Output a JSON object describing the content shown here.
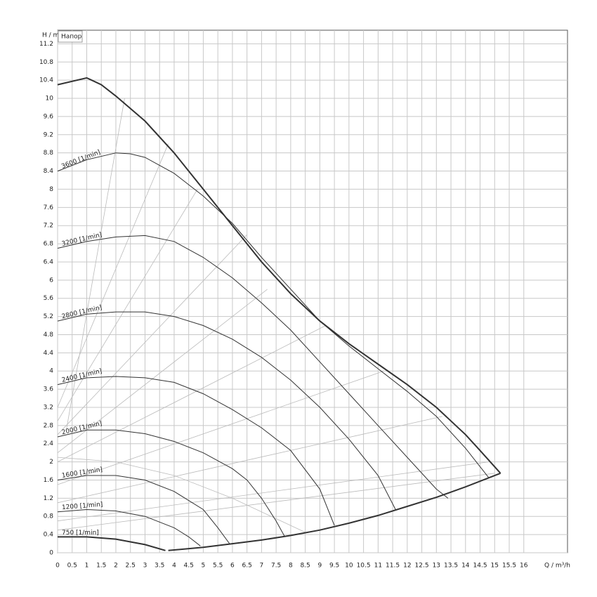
{
  "chart_data": {
    "type": "line",
    "y_axis_label": "H / m",
    "x_axis_label": "Q / m³/h",
    "legend_box": "Напор",
    "xlim": [
      0,
      17.5
    ],
    "ylim": [
      0,
      11.5
    ],
    "xticks": [
      0,
      0.5,
      1,
      1.5,
      2,
      2.5,
      3,
      3.5,
      4,
      4.5,
      5,
      5.5,
      6,
      6.5,
      7,
      7.5,
      8,
      8.5,
      9,
      9.5,
      10,
      10.5,
      11,
      11.5,
      12,
      12.5,
      13,
      13.5,
      14,
      14.5,
      15,
      15.5,
      16
    ],
    "yticks": [
      0,
      0.4,
      0.8,
      1.2,
      1.6,
      2,
      2.4,
      2.8,
      3.2,
      3.6,
      4,
      4.4,
      4.8,
      5.2,
      5.6,
      6,
      6.4,
      6.8,
      7.2,
      7.6,
      8,
      8.4,
      8.8,
      9.2,
      9.6,
      10,
      10.4,
      10.8,
      11.2
    ],
    "grid": true,
    "series": [
      {
        "color": "#bbbbbb",
        "line_width": 0.8,
        "x": [
          0.3,
          2.3
        ],
        "values": [
          2.7,
          10.0
        ]
      },
      {
        "color": "#bbbbbb",
        "line_width": 0.8,
        "x": [
          0,
          3.8
        ],
        "values": [
          3.2,
          9.0
        ]
      },
      {
        "color": "#bbbbbb",
        "line_width": 0.8,
        "x": [
          0,
          4.8
        ],
        "values": [
          2.9,
          8.0
        ]
      },
      {
        "color": "#bbbbbb",
        "line_width": 0.8,
        "x": [
          0,
          6.5
        ],
        "values": [
          2.6,
          7.0
        ]
      },
      {
        "color": "#bbbbbb",
        "line_width": 0.8,
        "x": [
          0,
          7.2
        ],
        "values": [
          2.2,
          5.8
        ]
      },
      {
        "color": "#bbbbbb",
        "line_width": 0.8,
        "x": [
          0,
          9.2
        ],
        "values": [
          2.0,
          5.0
        ]
      },
      {
        "color": "#bbbbbb",
        "line_width": 0.8,
        "x": [
          0,
          11.2
        ],
        "values": [
          1.5,
          4.0
        ]
      },
      {
        "color": "#bbbbbb",
        "line_width": 0.8,
        "x": [
          0,
          13.2
        ],
        "values": [
          1.1,
          3.0
        ]
      },
      {
        "color": "#bbbbbb",
        "line_width": 0.8,
        "x": [
          0,
          14.8
        ],
        "values": [
          0.7,
          2.0
        ]
      },
      {
        "color": "#bbbbbb",
        "line_width": 0.8,
        "x": [
          0,
          15.0
        ],
        "values": [
          0.5,
          1.75
        ]
      },
      {
        "color": "#bbbbbb",
        "line_width": 0.8,
        "x": [
          0,
          2,
          4,
          6,
          8.5
        ],
        "values": [
          2.1,
          2.0,
          1.7,
          1.2,
          0.45
        ]
      },
      {
        "color": "#333333",
        "line_width": 2,
        "x": [
          0,
          1,
          1.5,
          2,
          3,
          4,
          5,
          6,
          7,
          8,
          9,
          10,
          11,
          12,
          13,
          14,
          14.5,
          15.2
        ],
        "values": [
          10.3,
          10.45,
          10.3,
          10.05,
          9.5,
          8.8,
          8.0,
          7.2,
          6.4,
          5.7,
          5.1,
          4.6,
          4.15,
          3.7,
          3.2,
          2.6,
          2.25,
          1.75
        ]
      },
      {
        "color": "#333333",
        "line_width": 2,
        "x": [
          3.8,
          5,
          6,
          7,
          8,
          9,
          10,
          11,
          12,
          13,
          14,
          15.2
        ],
        "values": [
          0.05,
          0.12,
          0.2,
          0.28,
          0.38,
          0.5,
          0.65,
          0.82,
          1.02,
          1.22,
          1.45,
          1.75
        ]
      },
      {
        "name": "3600 [1/min]",
        "color": "#333333",
        "line_width": 1,
        "x": [
          0,
          1,
          2,
          2.5,
          3,
          4,
          5,
          6,
          7,
          8,
          9,
          10,
          11,
          12,
          13,
          14,
          14.8
        ],
        "values": [
          8.4,
          8.65,
          8.8,
          8.78,
          8.7,
          8.35,
          7.85,
          7.25,
          6.5,
          5.8,
          5.1,
          4.55,
          4.05,
          3.55,
          3.0,
          2.3,
          1.65
        ]
      },
      {
        "name": "3200 [1/min]",
        "color": "#333333",
        "line_width": 1,
        "x": [
          0,
          1,
          2,
          3,
          4,
          5,
          6,
          7,
          8,
          9,
          10,
          11,
          12,
          13,
          13.4
        ],
        "values": [
          6.7,
          6.85,
          6.95,
          6.98,
          6.85,
          6.5,
          6.05,
          5.5,
          4.9,
          4.2,
          3.5,
          2.8,
          2.1,
          1.4,
          1.2
        ]
      },
      {
        "name": "2800 [1/min]",
        "color": "#333333",
        "line_width": 1,
        "x": [
          0,
          1,
          2,
          3,
          4,
          5,
          6,
          7,
          8,
          9,
          10,
          11,
          11.6
        ],
        "values": [
          5.1,
          5.25,
          5.3,
          5.3,
          5.2,
          5.0,
          4.7,
          4.3,
          3.8,
          3.2,
          2.5,
          1.7,
          0.95
        ]
      },
      {
        "name": "2400 [1/min]",
        "color": "#333333",
        "line_width": 1,
        "x": [
          0,
          1,
          2,
          3,
          4,
          5,
          6,
          7,
          8,
          9,
          9.5
        ],
        "values": [
          3.7,
          3.85,
          3.88,
          3.85,
          3.75,
          3.5,
          3.15,
          2.75,
          2.25,
          1.4,
          0.6
        ]
      },
      {
        "name": "2000 [1/min]",
        "color": "#333333",
        "line_width": 1,
        "x": [
          0,
          1,
          2,
          3,
          4,
          5,
          6,
          6.5,
          7,
          7.5,
          7.8
        ],
        "values": [
          2.55,
          2.7,
          2.7,
          2.62,
          2.45,
          2.2,
          1.85,
          1.6,
          1.2,
          0.7,
          0.35
        ]
      },
      {
        "name": "1600 [1/min]",
        "color": "#333333",
        "line_width": 1,
        "x": [
          0,
          1,
          2,
          3,
          4,
          5,
          5.5,
          5.9
        ],
        "values": [
          1.6,
          1.7,
          1.7,
          1.6,
          1.35,
          0.95,
          0.55,
          0.2
        ]
      },
      {
        "name": "1200 [1/min]",
        "color": "#333333",
        "line_width": 1,
        "x": [
          0,
          1,
          2,
          3,
          4,
          4.5,
          4.9
        ],
        "values": [
          0.9,
          0.95,
          0.92,
          0.8,
          0.55,
          0.35,
          0.15
        ]
      },
      {
        "name": "750 [1/min]",
        "color": "#333333",
        "line_width": 2,
        "x": [
          0,
          1,
          2,
          3,
          3.7
        ],
        "values": [
          0.35,
          0.35,
          0.3,
          0.18,
          0.05
        ]
      }
    ]
  }
}
